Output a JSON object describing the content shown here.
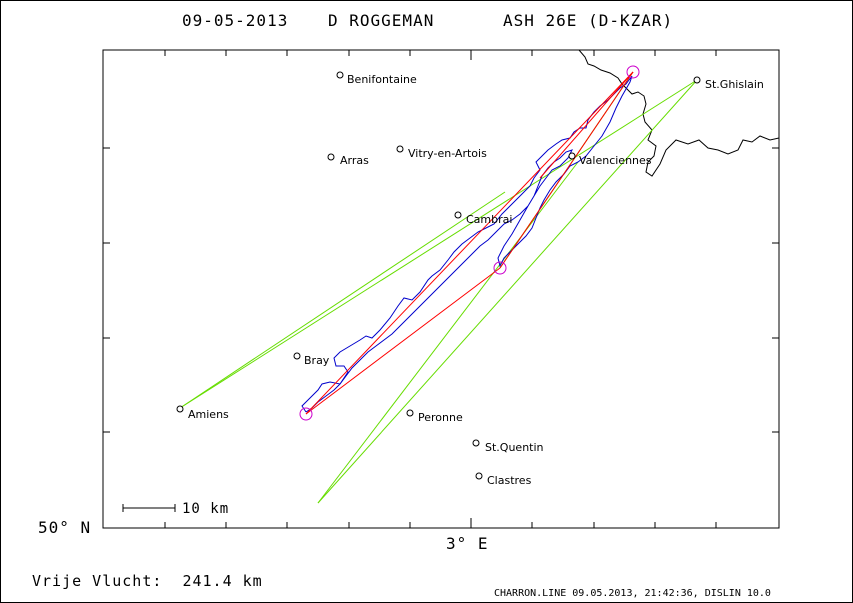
{
  "header": {
    "date": "09-05-2013",
    "pilot": "D ROGGEMAN",
    "glider": "ASH 26E (D-KZAR)"
  },
  "axes": {
    "lat_label": "50° N",
    "lon_label": "3° E"
  },
  "scale_bar": {
    "label": "10 km"
  },
  "footer": {
    "distance": "Vrije Vlucht:  241.4 km",
    "credits": "CHARRON.LINE 09.05.2013, 21:42:36, DISLIN 10.0"
  },
  "places": [
    {
      "name": "Benifontaine"
    },
    {
      "name": "St.Ghislain"
    },
    {
      "name": "Arras"
    },
    {
      "name": "Vitry-en-Artois"
    },
    {
      "name": "Valenciennes"
    },
    {
      "name": "Cambrai"
    },
    {
      "name": "Bray"
    },
    {
      "name": "Amiens"
    },
    {
      "name": "Peronne"
    },
    {
      "name": "St.Quentin"
    },
    {
      "name": "Clastres"
    }
  ],
  "colors": {
    "track": "#0000cc",
    "task_lines": "#ff0000",
    "glide_lines": "#66dd00",
    "turnpoints": "#cc00cc",
    "border": "#000000"
  }
}
